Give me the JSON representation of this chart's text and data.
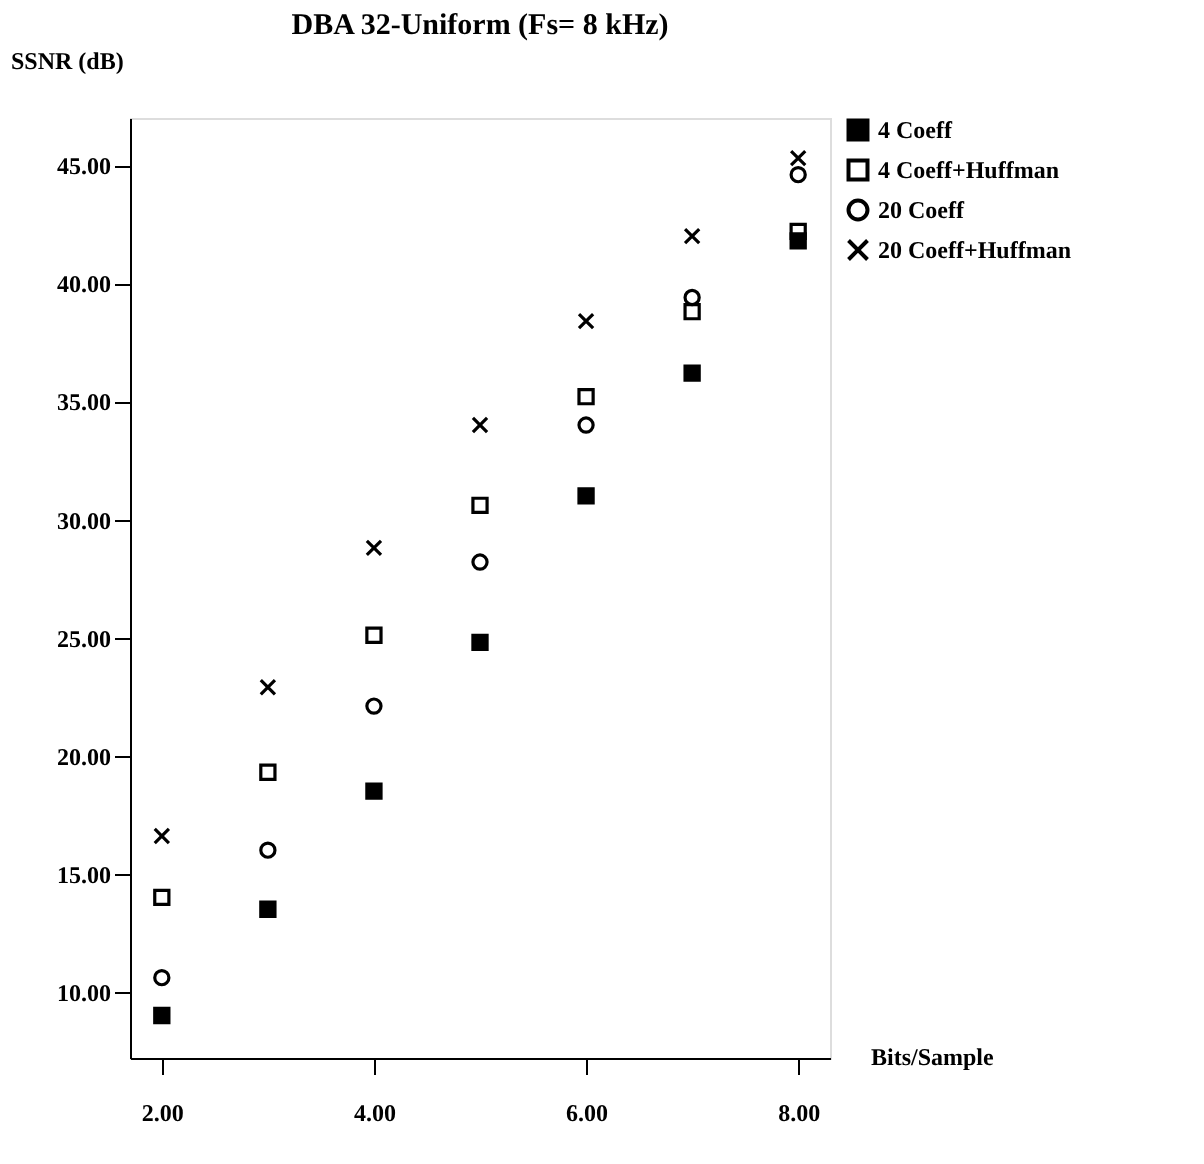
{
  "chart_data": {
    "type": "scatter",
    "title": "DBA 32-Uniform (Fs= 8 kHz)",
    "xlabel": "Bits/Sample",
    "ylabel": "SSNR (dB)",
    "x": [
      2,
      3,
      4,
      5,
      6,
      7,
      8
    ],
    "series": [
      {
        "name": "4 Coeff",
        "color": "#000000",
        "marker": "square",
        "values": [
          9.0,
          13.5,
          18.5,
          24.8,
          31.0,
          36.2,
          41.8
        ]
      },
      {
        "name": "4 Coeff+Huffman",
        "color": "#000000",
        "marker": "square",
        "values": [
          14.0,
          19.3,
          25.1,
          30.6,
          35.2,
          38.8,
          42.2
        ]
      },
      {
        "name": "20 Coeff",
        "color": "#000000",
        "marker": "circle",
        "values": [
          10.6,
          16.0,
          22.1,
          28.2,
          34.0,
          39.4,
          44.6
        ]
      },
      {
        "name": "20 Coeff+Huffman",
        "color": "#000000",
        "marker": "cross",
        "values": [
          16.6,
          22.9,
          28.8,
          34.0,
          38.4,
          42.0,
          45.3
        ]
      }
    ],
    "xlim": [
      1.7,
      8.3
    ],
    "ylim": [
      7.2,
      47
    ],
    "xticks": [
      {
        "value": 2,
        "label": "2.00"
      },
      {
        "value": 4,
        "label": "4.00"
      },
      {
        "value": 6,
        "label": "6.00"
      },
      {
        "value": 8,
        "label": "8.00"
      }
    ],
    "yticks": [
      {
        "value": 10,
        "label": "10.00"
      },
      {
        "value": 15,
        "label": "15.00"
      },
      {
        "value": 20,
        "label": "20.00"
      },
      {
        "value": 25,
        "label": "25.00"
      },
      {
        "value": 30,
        "label": "30.00"
      },
      {
        "value": 35,
        "label": "35.00"
      },
      {
        "value": 40,
        "label": "40.00"
      },
      {
        "value": 45,
        "label": "45.00"
      }
    ],
    "grid": false,
    "legend": "top right"
  }
}
